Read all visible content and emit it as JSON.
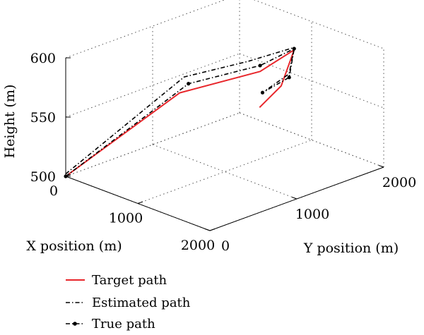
{
  "chart_data": {
    "type": "line",
    "projection": "3d",
    "xlabel": "X position (m)",
    "ylabel": "Y position (m)",
    "zlabel": "Height (m)",
    "xlim": [
      0,
      2000
    ],
    "ylim": [
      0,
      2000
    ],
    "zlim": [
      500,
      600
    ],
    "xticks": [
      0,
      1000,
      2000
    ],
    "yticks": [
      0,
      1000,
      2000
    ],
    "zticks": [
      500,
      550,
      600
    ],
    "xtick_labels": [
      "0",
      "1000",
      "2000"
    ],
    "ytick_labels": [
      "0",
      "1000",
      "2000"
    ],
    "ztick_labels": [
      "500",
      "550",
      "600"
    ],
    "grid": true,
    "legend": "bottom-left",
    "series": [
      {
        "name": "Target path",
        "color": "#e8262b",
        "style": "solid",
        "marker": "none",
        "points": [
          [
            0,
            0,
            500
          ],
          [
            1100,
            400,
            585
          ],
          [
            1250,
            1200,
            585
          ],
          [
            1300,
            1550,
            595
          ],
          [
            1000,
            1650,
            555
          ],
          [
            700,
            1650,
            530
          ]
        ]
      },
      {
        "name": "Estimated path",
        "color": "#000000",
        "style": "dashdot",
        "marker": "none",
        "points": [
          [
            0,
            0,
            502
          ],
          [
            1100,
            450,
            597
          ],
          [
            1200,
            1100,
            595
          ],
          [
            1300,
            1550,
            597
          ],
          [
            1050,
            1700,
            565
          ],
          [
            650,
            1750,
            540
          ]
        ]
      },
      {
        "name": "True path",
        "color": "#000000",
        "style": "dashdot",
        "marker": "dot",
        "points": [
          [
            0,
            0,
            500
          ],
          [
            1100,
            500,
            590
          ],
          [
            1250,
            1200,
            590
          ],
          [
            1300,
            1550,
            596
          ],
          [
            1050,
            1700,
            562
          ],
          [
            620,
            1750,
            538
          ]
        ]
      }
    ]
  }
}
